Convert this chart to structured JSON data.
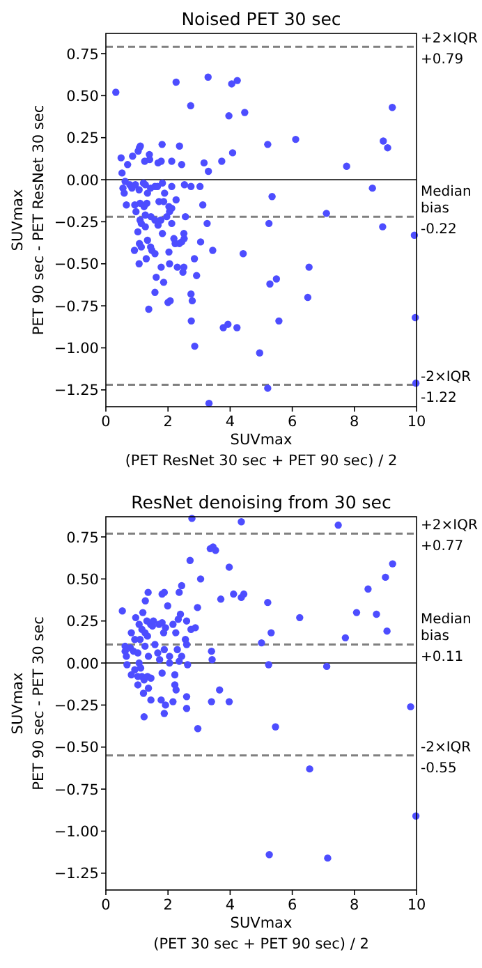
{
  "chart_data": [
    {
      "type": "scatter",
      "title": "Noised PET 30 sec",
      "xlabel": "SUVmax\n(PET ResNet 30 sec + PET 90 sec) / 2",
      "ylabel": "SUVmax\nPET 90 sec - PET ResNet 30 sec",
      "color": "#4d4dff",
      "marker": "circle",
      "xlim": [
        0,
        10
      ],
      "xticks": [
        0,
        2,
        4,
        6,
        8,
        10
      ],
      "ylim": [
        -1.35,
        0.87
      ],
      "yticks": [
        {
          "value": -1.25,
          "label": "−1.25"
        },
        {
          "value": -1,
          "label": "−1.00"
        },
        {
          "value": -0.75,
          "label": "−0.75"
        },
        {
          "value": -0.5,
          "label": "−0.50"
        },
        {
          "value": -0.25,
          "label": "−0.25"
        },
        {
          "value": 0,
          "label": "0.00"
        },
        {
          "value": 0.25,
          "label": "0.25"
        },
        {
          "value": 0.5,
          "label": "0.50"
        },
        {
          "value": 0.75,
          "label": "0.75"
        }
      ],
      "ref_lines": [
        {
          "axis": "y",
          "value": 0.79,
          "label": "+2×IQR\n+0.79",
          "color": "#808080",
          "line_style": "dashed"
        },
        {
          "axis": "y",
          "value": -0.22,
          "label": "Median\nbias\n-0.22",
          "color": "#808080",
          "line_style": "dashed"
        },
        {
          "axis": "y",
          "value": -1.22,
          "label": "-2×IQR\n-1.22",
          "color": "#808080",
          "line_style": "dashed"
        },
        {
          "axis": "y",
          "value": 0,
          "color": "#000000",
          "line_style": "solid"
        }
      ],
      "x": [
        0.32,
        2.26,
        3.29,
        4.05,
        4.23,
        2.73,
        3.96,
        4.47,
        0.49,
        0.7,
        0.86,
        1.04,
        1.08,
        1.11,
        1.4,
        1.41,
        1.25,
        1.81,
        1.68,
        1.78,
        2.12,
        2.37,
        2.44,
        3.16,
        3.3,
        3.73,
        4.08,
        0.52,
        0.62,
        0.55,
        0.59,
        0.66,
        0.77,
        0.84,
        0.95,
        1.07,
        1.21,
        1.27,
        1.34,
        1.32,
        1.23,
        1.1,
        0.93,
        0.97,
        1.44,
        1.58,
        1.66,
        1.82,
        1.71,
        1.86,
        1.89,
        2.03,
        2.12,
        2.12,
        2.26,
        2.53,
        2.74,
        3.03,
        3.12,
        1.27,
        1.45,
        1.1,
        1.14,
        1.27,
        1.58,
        1.77,
        1.68,
        1.96,
        2.05,
        2.56,
        3.26,
        1.03,
        0.92,
        1.08,
        1.14,
        1.34,
        1.44,
        1.48,
        1.58,
        1.3,
        1.07,
        1.82,
        2.12,
        2.19,
        2.23,
        2.36,
        2.44,
        2.51,
        2.52,
        3.05,
        3.44,
        4.42,
        2.05,
        2.03,
        1.78,
        2.3,
        2.51,
        2.48,
        2.85,
        2.92,
        1.62,
        1.86,
        1.58,
        1.38,
        2.0,
        2.07,
        2.74,
        2.78,
        2.75,
        2.86,
        3.78,
        3.93,
        4.22,
        3.32,
        5.21,
        6.11,
        9.22,
        8.93,
        9.07,
        7.75,
        5.35,
        8.58,
        7.1,
        5.25,
        8.91,
        9.93,
        6.54,
        5.28,
        5.49,
        6.5,
        5.57,
        9.96,
        4.95,
        5.21,
        9.98
      ],
      "values": [
        0.52,
        0.58,
        0.61,
        0.57,
        0.59,
        0.44,
        0.38,
        0.4,
        0.13,
        0.09,
        0.14,
        0.17,
        0.19,
        0.2,
        0.15,
        0.12,
        0.11,
        0.21,
        0.1,
        0.11,
        0.11,
        0.2,
        0.09,
        0.1,
        0.05,
        0.11,
        0.16,
        0.04,
        -0.01,
        -0.05,
        -0.08,
        -0.15,
        -0.03,
        -0.05,
        -0.03,
        -0.06,
        -0.02,
        -0.03,
        -0.08,
        -0.14,
        -0.16,
        -0.14,
        -0.15,
        -0.19,
        -0.05,
        -0.04,
        -0.04,
        -0.02,
        -0.13,
        -0.13,
        -0.08,
        -0.16,
        -0.17,
        -0.04,
        -0.12,
        -0.03,
        -0.04,
        -0.04,
        -0.15,
        -0.21,
        -0.22,
        -0.24,
        -0.26,
        -0.28,
        -0.24,
        -0.24,
        -0.27,
        -0.22,
        -0.19,
        -0.22,
        -0.26,
        -0.31,
        -0.42,
        -0.38,
        -0.4,
        -0.36,
        -0.4,
        -0.42,
        -0.44,
        -0.47,
        -0.5,
        -0.32,
        -0.26,
        -0.35,
        -0.38,
        -0.38,
        -0.37,
        -0.32,
        -0.35,
        -0.37,
        -0.42,
        -0.44,
        -0.5,
        -0.43,
        -0.52,
        -0.52,
        -0.52,
        -0.55,
        -0.47,
        -0.57,
        -0.58,
        -0.61,
        -0.67,
        -0.77,
        -0.73,
        -0.72,
        -0.68,
        -0.72,
        -0.84,
        -0.99,
        -0.88,
        -0.86,
        -0.88,
        -1.33,
        0.21,
        0.24,
        0.43,
        0.23,
        0.19,
        0.08,
        -0.1,
        -0.05,
        -0.2,
        -0.26,
        -0.28,
        -0.33,
        -0.52,
        -0.62,
        -0.59,
        -0.7,
        -0.84,
        -0.82,
        -1.03,
        -1.24,
        -1.21
      ]
    },
    {
      "type": "scatter",
      "title": "ResNet denoising from 30 sec",
      "xlabel": "SUVmax\n(PET 30 sec + PET 90 sec) / 2",
      "ylabel": "SUVmax\nPET 90 sec - PET 30 sec",
      "color": "#4d4dff",
      "marker": "circle",
      "xlim": [
        0,
        10
      ],
      "xticks": [
        0,
        2,
        4,
        6,
        8,
        10
      ],
      "ylim": [
        -1.35,
        0.87
      ],
      "yticks": [
        {
          "value": -1.25,
          "label": "−1.25"
        },
        {
          "value": -1,
          "label": "−1.00"
        },
        {
          "value": -0.75,
          "label": "−0.75"
        },
        {
          "value": -0.5,
          "label": "−0.50"
        },
        {
          "value": -0.25,
          "label": "−0.25"
        },
        {
          "value": 0,
          "label": "0.00"
        },
        {
          "value": 0.25,
          "label": "0.25"
        },
        {
          "value": 0.5,
          "label": "0.50"
        },
        {
          "value": 0.75,
          "label": "0.75"
        }
      ],
      "ref_lines": [
        {
          "axis": "y",
          "value": 0.77,
          "label": "+2×IQR\n+0.77",
          "color": "#808080",
          "line_style": "dashed"
        },
        {
          "axis": "y",
          "value": 0.11,
          "label": "Median\nbias\n+0.11",
          "color": "#808080",
          "line_style": "dashed"
        },
        {
          "axis": "y",
          "value": -0.55,
          "label": "-2×IQR\n-0.55",
          "color": "#808080",
          "line_style": "dashed"
        },
        {
          "axis": "y",
          "value": 0,
          "color": "#000000",
          "line_style": "solid"
        }
      ],
      "x": [
        0.53,
        2.77,
        4.36,
        2.71,
        3.36,
        3.45,
        3.53,
        3.97,
        3.05,
        4.11,
        4.36,
        4.44,
        3.7,
        2.95,
        1.36,
        1.27,
        1.81,
        1.88,
        1.99,
        2.36,
        2.44,
        0.96,
        1.19,
        1.32,
        1.44,
        1.5,
        1.07,
        1.16,
        1.26,
        1.34,
        1.53,
        1.71,
        1.81,
        1.92,
        1.86,
        2.16,
        2.33,
        2.4,
        2.6,
        2.74,
        2.88,
        2.25,
        2.56,
        2.6,
        0.82,
        0.93,
        1.1,
        1.26,
        0.62,
        0.62,
        0.66,
        0.79,
        0.89,
        1.03,
        1.37,
        1.58,
        1.67,
        1.88,
        2.05,
        2.3,
        2.44,
        2.36,
        2.05,
        1.73,
        0.68,
        0.82,
        0.93,
        1.07,
        1.12,
        1.03,
        1.16,
        1.23,
        1.34,
        1.45,
        1.03,
        1.21,
        1.37,
        1.45,
        1.23,
        1.81,
        2.22,
        2.22,
        2.26,
        1.78,
        1.92,
        1.88,
        2.16,
        2.63,
        2.6,
        2.6,
        2.96,
        3.4,
        3.42,
        3.4,
        3.66,
        3.97,
        7.48,
        5.21,
        6.24,
        8.07,
        8.44,
        9.0,
        9.23,
        8.71,
        9.05,
        5.32,
        7.71,
        5.01,
        5.24,
        7.11,
        9.81,
        5.46,
        6.56,
        9.98,
        5.26,
        7.14
      ],
      "values": [
        0.31,
        0.86,
        0.84,
        0.61,
        0.68,
        0.69,
        0.67,
        0.57,
        0.5,
        0.41,
        0.39,
        0.41,
        0.38,
        0.33,
        0.42,
        0.37,
        0.41,
        0.42,
        0.34,
        0.42,
        0.46,
        0.27,
        0.3,
        0.25,
        0.23,
        0.22,
        0.23,
        0.2,
        0.18,
        0.16,
        0.25,
        0.23,
        0.24,
        0.21,
        0.18,
        0.23,
        0.26,
        0.29,
        0.25,
        0.2,
        0.21,
        0.18,
        0.14,
        0.11,
        0.18,
        0.14,
        0.14,
        0.1,
        0.1,
        0.07,
        0.04,
        0.09,
        0.07,
        0.06,
        0.04,
        0.11,
        0.06,
        0.08,
        0.04,
        0.08,
        0.04,
        0.01,
        0.0,
        0.02,
        -0.01,
        -0.07,
        -0.04,
        0.0,
        -0.03,
        -0.08,
        -0.08,
        -0.1,
        -0.08,
        -0.09,
        -0.13,
        -0.18,
        -0.15,
        -0.22,
        -0.32,
        -0.06,
        -0.07,
        -0.13,
        -0.16,
        -0.22,
        -0.25,
        -0.3,
        -0.23,
        -0.01,
        -0.2,
        -0.27,
        -0.39,
        0.07,
        0.02,
        -0.23,
        -0.16,
        -0.23,
        0.82,
        0.36,
        0.27,
        0.3,
        0.44,
        0.51,
        0.59,
        0.29,
        0.19,
        0.18,
        0.15,
        0.12,
        -0.01,
        -0.02,
        -0.26,
        -0.38,
        -0.63,
        -0.91,
        -1.14,
        -1.16
      ]
    }
  ]
}
